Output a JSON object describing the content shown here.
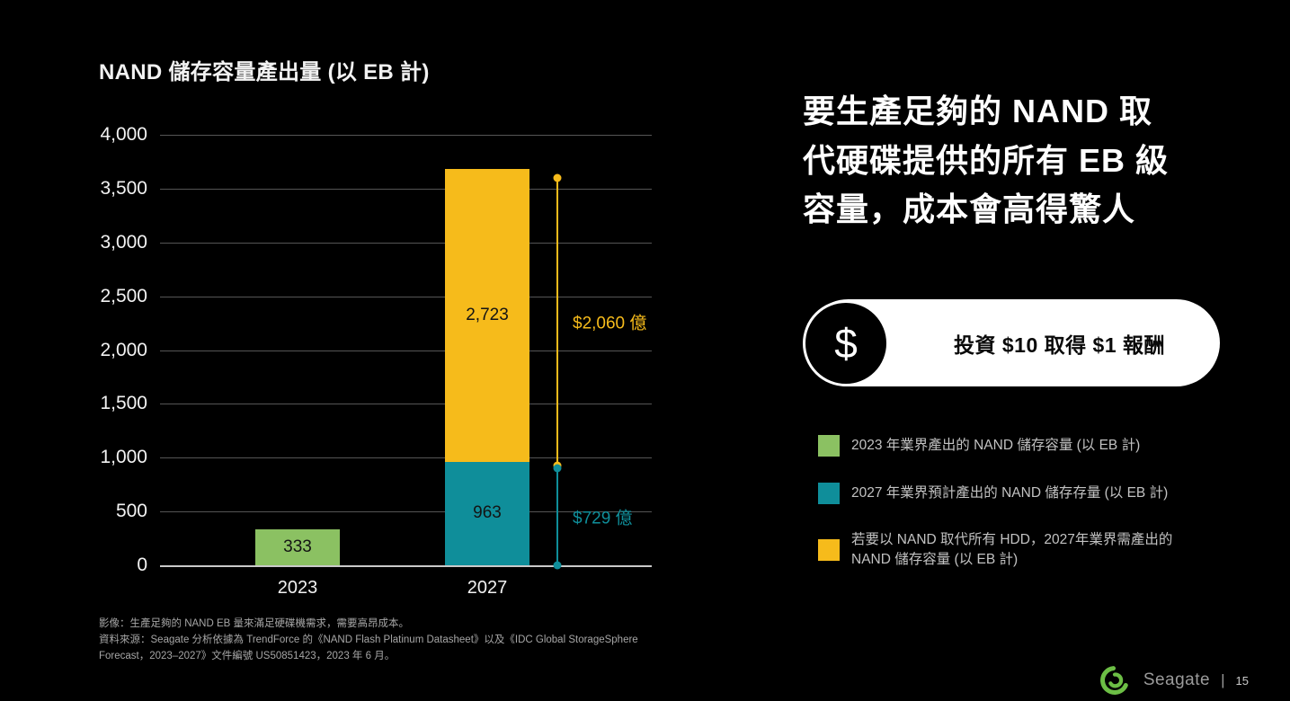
{
  "chart": {
    "title": "NAND 儲存容量產出量 (以 EB 計)"
  },
  "chart_data": {
    "type": "bar",
    "stacked": true,
    "title": "NAND 儲存容量產出量 (以 EB 計)",
    "xlabel": "",
    "ylabel": "",
    "ylim": [
      0,
      4000
    ],
    "yticks": [
      0,
      500,
      1000,
      1500,
      2000,
      2500,
      3000,
      3500,
      4000
    ],
    "grid": true,
    "legend_position": "right-panel",
    "categories": [
      "2023",
      "2027"
    ],
    "series": [
      {
        "name": "2023 年業界產出的 NAND 儲存容量 (以 EB 計)",
        "color": "#8BC162",
        "values": [
          333,
          null
        ]
      },
      {
        "name": "2027 年業界預計產出的 NAND 儲存存量 (以 EB 計)",
        "color": "#0F8E9A",
        "values": [
          null,
          963
        ]
      },
      {
        "name": "若要以 NAND 取代所有 HDD，2027年業界需產出的\nNAND 儲存容量 (以 EB 計)",
        "color": "#F6BB1B",
        "values": [
          null,
          2723
        ]
      }
    ],
    "annotations": [
      {
        "label": "$2,060 億",
        "color": "#F6BB1B",
        "span": [
          930,
          3600
        ]
      },
      {
        "label": "$729 億",
        "color": "#0F8E9A",
        "span": [
          0,
          905
        ]
      }
    ]
  },
  "headline": {
    "lines": [
      "要生產足夠的 NAND 取",
      "代硬碟提供的所有 EB 級",
      "容量，成本會高得驚人"
    ]
  },
  "roi": {
    "icon_glyph": "$",
    "label": "投資 $10 取得 $1 報酬"
  },
  "footnote": {
    "lines": [
      "影像：生產足夠的 NAND EB 量來滿足硬碟機需求，需要高昂成本。",
      "資料來源：Seagate 分析依據為 TrendForce 的《NAND Flash Platinum Datasheet》以及《IDC Global StorageSphere",
      "Forecast，2023–2027》文件編號 US50851423，2023 年 6 月。"
    ]
  },
  "footer": {
    "brand": "Seagate",
    "divider": "|",
    "page": "15"
  }
}
